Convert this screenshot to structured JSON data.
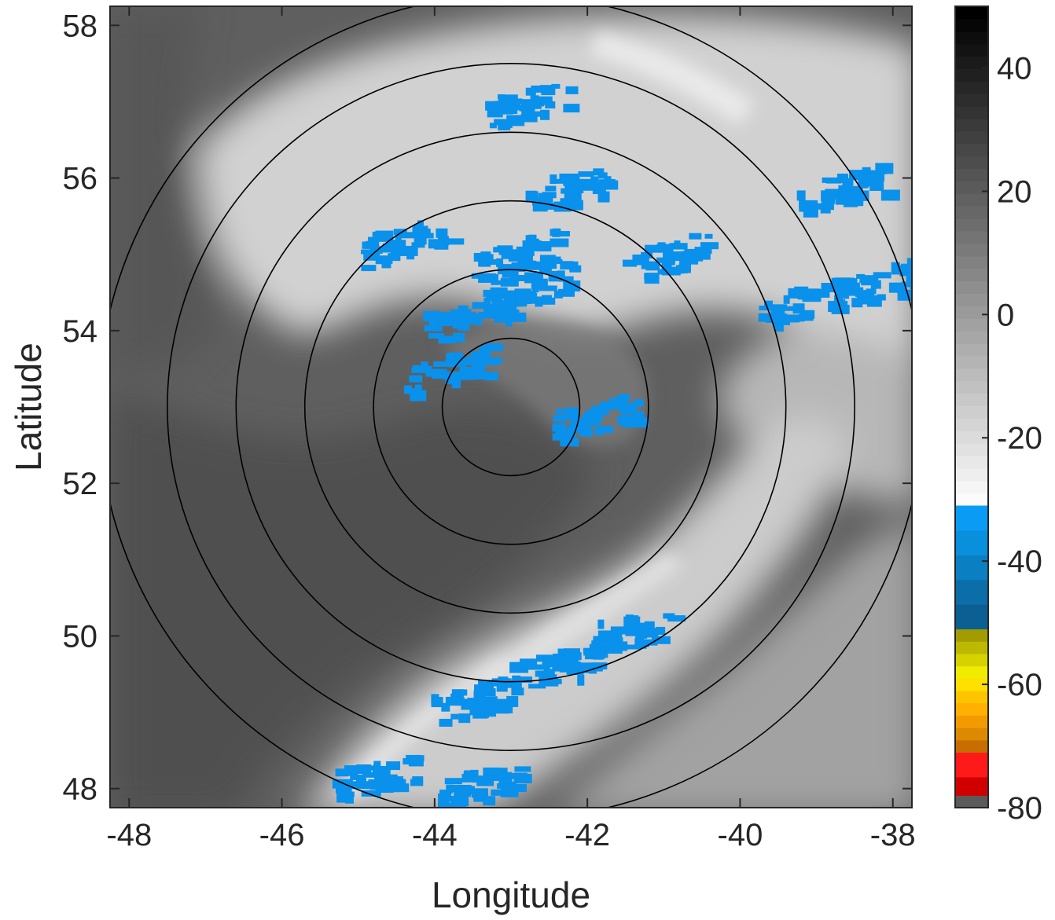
{
  "chart_data": {
    "type": "heatmap",
    "title": "",
    "xlabel": "Longitude",
    "ylabel": "Latitude",
    "xlim": [
      -48.25,
      -37.75
    ],
    "ylim": [
      47.75,
      58.25
    ],
    "x_ticks": [
      -48,
      -46,
      -44,
      -42,
      -40,
      -38
    ],
    "y_ticks": [
      48,
      50,
      52,
      54,
      56,
      58
    ],
    "grid": false,
    "field_description": "Gridded brightness-temperature style field shaded in grayscale with the coldest values highlighted in blue",
    "range_rings": {
      "center": [
        -43.0,
        53.0
      ],
      "radii_deg_lat": [
        0.9,
        1.8,
        2.7,
        3.6,
        4.5,
        5.4
      ]
    },
    "cold_cloud_patches": [
      {
        "lon": -42.8,
        "lat": 57.0,
        "value": -35
      },
      {
        "lon": -42.3,
        "lat": 55.9,
        "value": -36
      },
      {
        "lon": -44.4,
        "lat": 55.2,
        "value": -35
      },
      {
        "lon": -43.0,
        "lat": 55.0,
        "value": -36
      },
      {
        "lon": -41.0,
        "lat": 55.0,
        "value": -37
      },
      {
        "lon": -39.2,
        "lat": 54.4,
        "value": -38
      },
      {
        "lon": -38.0,
        "lat": 54.7,
        "value": -35
      },
      {
        "lon": -43.6,
        "lat": 54.2,
        "value": -37
      },
      {
        "lon": -43.9,
        "lat": 53.5,
        "value": -34
      },
      {
        "lon": -42.8,
        "lat": 54.6,
        "value": -34
      },
      {
        "lon": -41.9,
        "lat": 52.9,
        "value": -33
      },
      {
        "lon": -42.5,
        "lat": 49.6,
        "value": -37
      },
      {
        "lon": -41.5,
        "lat": 50.1,
        "value": -36
      },
      {
        "lon": -43.5,
        "lat": 49.2,
        "value": -35
      },
      {
        "lon": -44.8,
        "lat": 48.2,
        "value": -34
      },
      {
        "lon": -43.4,
        "lat": 48.1,
        "value": -34
      },
      {
        "lon": -38.7,
        "lat": 55.9,
        "value": -33
      }
    ],
    "colorbar": {
      "limits": [
        -80,
        50
      ],
      "ticks": [
        40,
        20,
        0,
        -20,
        -40,
        -60,
        -80
      ],
      "segments": [
        {
          "from": -80,
          "to": -78,
          "color": "#5a5a5a"
        },
        {
          "from": -78,
          "to": -75,
          "color": "#d10000"
        },
        {
          "from": -75,
          "to": -71,
          "color": "#ff1a1a"
        },
        {
          "from": -71,
          "to": -69,
          "color": "#c86e00"
        },
        {
          "from": -69,
          "to": -67,
          "color": "#dd8a00"
        },
        {
          "from": -67,
          "to": -65,
          "color": "#f29a00"
        },
        {
          "from": -65,
          "to": -63,
          "color": "#ffb000"
        },
        {
          "from": -63,
          "to": -61,
          "color": "#ffc400"
        },
        {
          "from": -61,
          "to": -59,
          "color": "#ffe000"
        },
        {
          "from": -59,
          "to": -57,
          "color": "#f0ec00"
        },
        {
          "from": -57,
          "to": -55,
          "color": "#d6d200"
        },
        {
          "from": -55,
          "to": -53,
          "color": "#bdb800"
        },
        {
          "from": -53,
          "to": -51,
          "color": "#a39c00"
        },
        {
          "from": -51,
          "to": -47,
          "color": "#0b5f92"
        },
        {
          "from": -47,
          "to": -43,
          "color": "#0c6ea8"
        },
        {
          "from": -43,
          "to": -39,
          "color": "#0a7fc2"
        },
        {
          "from": -39,
          "to": -35,
          "color": "#0890dc"
        },
        {
          "from": -35,
          "to": -31,
          "color": "#0a9cf5"
        }
      ],
      "gray_top": 50,
      "gray_bottom": -31,
      "gray_light": "#fbfbfb",
      "gray_dark": "#000000"
    },
    "colors": {
      "warm_surface": "#5d5d5d",
      "cold_cloud_mask": "#0991ec",
      "ring": "#000000",
      "axis": "#262626"
    }
  }
}
